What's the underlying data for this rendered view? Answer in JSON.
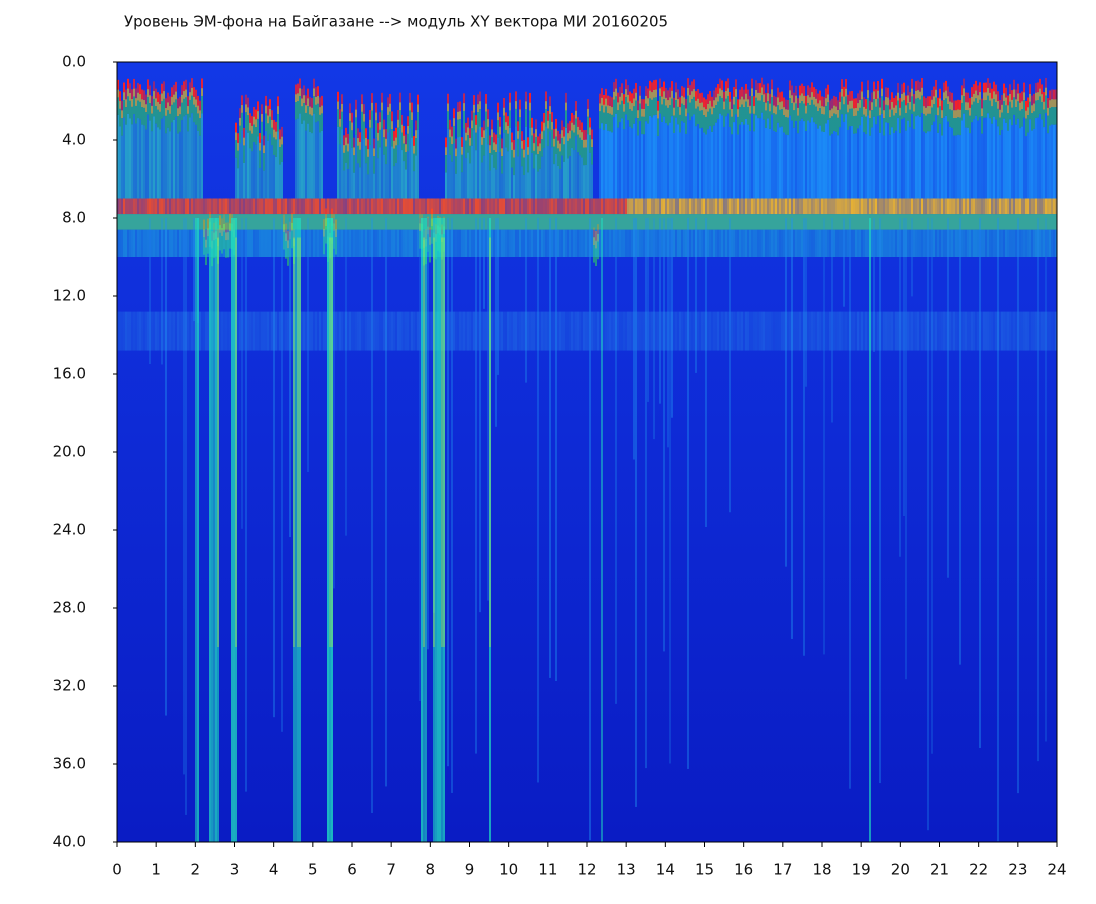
{
  "chart_data": {
    "type": "spectrogram",
    "title": "Уровень ЭМ-фона на Байгазане  --> модуль XY вектора МИ  20160205",
    "xlim": [
      0,
      24
    ],
    "xticks": [
      0,
      1,
      2,
      3,
      4,
      5,
      6,
      7,
      8,
      9,
      10,
      11,
      12,
      13,
      14,
      15,
      16,
      17,
      18,
      19,
      20,
      21,
      22,
      23,
      24
    ],
    "ylim": [
      40,
      0
    ],
    "yticks": [
      {
        "value": 0,
        "label": "0.0"
      },
      {
        "value": 4,
        "label": "4.0"
      },
      {
        "value": 8,
        "label": "8.0"
      },
      {
        "value": 12,
        "label": "12.0"
      },
      {
        "value": 16,
        "label": "16.0"
      },
      {
        "value": 20,
        "label": "20.0"
      },
      {
        "value": 24,
        "label": "24.0"
      },
      {
        "value": 28,
        "label": "28.0"
      },
      {
        "value": 32,
        "label": "32.0"
      },
      {
        "value": 36,
        "label": "36.0"
      },
      {
        "value": 40,
        "label": "40.0"
      }
    ]
  }
}
